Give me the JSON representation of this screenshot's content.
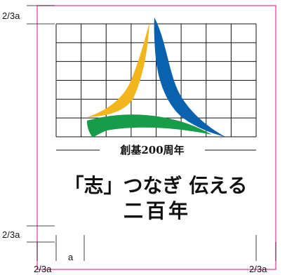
{
  "spec": {
    "margin_label_top": "2/3a",
    "margin_label_bottom": "2/3a",
    "margin_label_left_bottom": "2/3a",
    "margin_label_right_bottom": "2/3a",
    "unit_label": "a",
    "grid_columns": 8,
    "grid_rows": 6
  },
  "logo": {
    "subtitle": "創基200周年",
    "slogan_line1": "「志」つなぎ 伝える",
    "slogan_line2": "二百年"
  },
  "colors": {
    "frame": "#e0359b",
    "yellow": "#f2b51c",
    "blue": "#0a61ad",
    "green": "#179c4a",
    "line": "#111111"
  }
}
